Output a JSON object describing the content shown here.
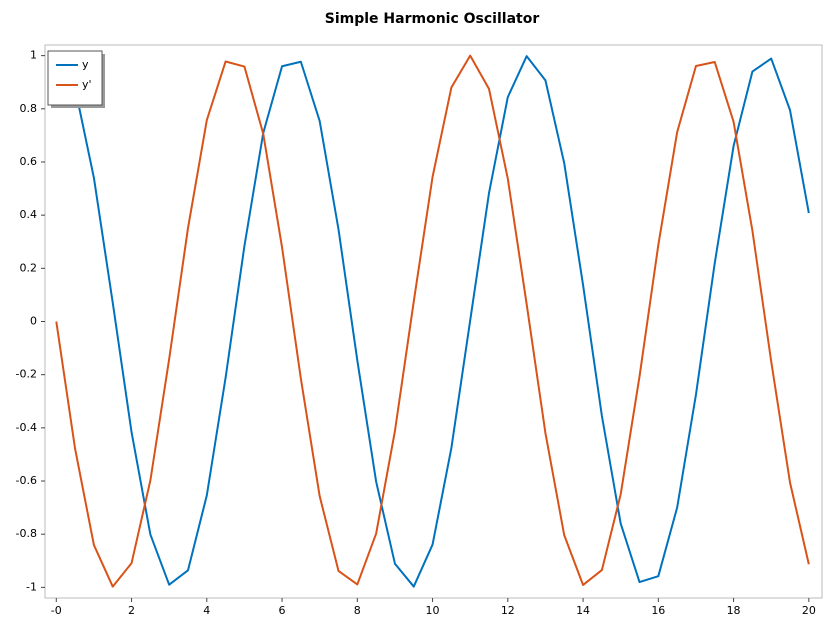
{
  "chart_data": {
    "type": "line",
    "title": "Simple Harmonic Oscillator",
    "x": [
      0,
      0.5,
      1,
      1.5,
      2,
      2.5,
      3,
      3.5,
      4,
      4.5,
      5,
      5.5,
      6,
      6.5,
      7,
      7.5,
      8,
      8.5,
      9,
      9.5,
      10,
      10.5,
      11,
      11.5,
      12,
      12.5,
      13,
      13.5,
      14,
      14.5,
      15,
      15.5,
      16,
      16.5,
      17,
      17.5,
      18,
      18.5,
      19,
      19.5,
      20
    ],
    "series": [
      {
        "name": "y",
        "color": "#0072bd",
        "values": [
          1,
          0.878,
          0.54,
          0.071,
          -0.416,
          -0.801,
          -0.99,
          -0.936,
          -0.654,
          -0.211,
          0.284,
          0.709,
          0.96,
          0.977,
          0.754,
          0.347,
          -0.146,
          -0.602,
          -0.911,
          -0.997,
          -0.839,
          -0.476,
          0.004,
          0.483,
          0.844,
          0.998,
          0.907,
          0.595,
          0.137,
          -0.355,
          -0.76,
          -0.98,
          -0.958,
          -0.7,
          -0.275,
          0.22,
          0.66,
          0.94,
          0.989,
          0.795,
          0.408
        ]
      },
      {
        "name": "y'",
        "color": "#d95319",
        "values": [
          0,
          -0.479,
          -0.841,
          -0.997,
          -0.909,
          -0.598,
          -0.141,
          0.351,
          0.757,
          0.978,
          0.959,
          0.706,
          0.279,
          -0.215,
          -0.657,
          -0.938,
          -0.989,
          -0.798,
          -0.412,
          0.075,
          0.544,
          0.88,
          1,
          0.875,
          0.537,
          0.066,
          -0.42,
          -0.804,
          -0.991,
          -0.935,
          -0.65,
          -0.207,
          0.288,
          0.712,
          0.961,
          0.976,
          0.751,
          0.342,
          -0.15,
          -0.606,
          -0.913
        ]
      }
    ],
    "xlim": [
      -0.3,
      20.35
    ],
    "ylim": [
      -1.04,
      1.04
    ],
    "xticks": [
      {
        "value": 0,
        "label": "-0"
      },
      2,
      4,
      6,
      8,
      10,
      12,
      14,
      16,
      18,
      20
    ],
    "yticks": [
      -1,
      -0.8,
      -0.6,
      -0.4,
      -0.2,
      0,
      0.2,
      0.4,
      0.6,
      0.8,
      1
    ],
    "grid": false,
    "legend": "top-left"
  }
}
